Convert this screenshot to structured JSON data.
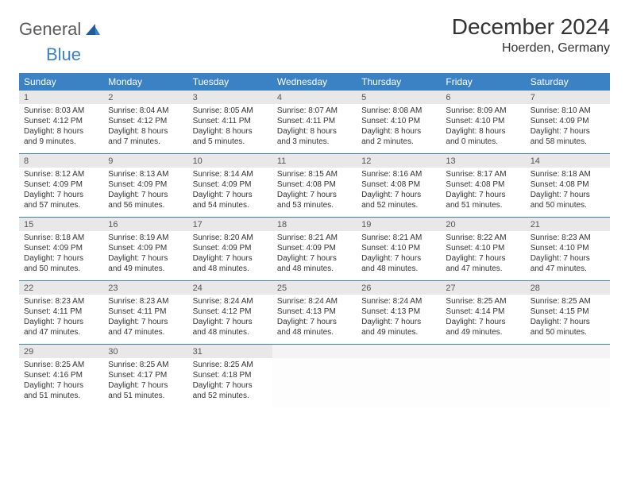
{
  "brand": {
    "part1": "General",
    "part2": "Blue"
  },
  "title": "December 2024",
  "location": "Hoerden, Germany",
  "colors": {
    "header_bg": "#3b82c4",
    "header_text": "#ffffff",
    "daynum_bg": "#e8e8e8",
    "empty_bg": "#f4f4f4",
    "rule": "#3b82c4",
    "body_text": "#333333"
  },
  "fonts": {
    "title_pt": 28,
    "location_pt": 16,
    "dayhead_pt": 12,
    "daynum_pt": 11,
    "detail_pt": 10
  },
  "day_headers": [
    "Sunday",
    "Monday",
    "Tuesday",
    "Wednesday",
    "Thursday",
    "Friday",
    "Saturday"
  ],
  "weeks": [
    [
      {
        "n": "1",
        "sr": "Sunrise: 8:03 AM",
        "ss": "Sunset: 4:12 PM",
        "d1": "Daylight: 8 hours",
        "d2": "and 9 minutes."
      },
      {
        "n": "2",
        "sr": "Sunrise: 8:04 AM",
        "ss": "Sunset: 4:12 PM",
        "d1": "Daylight: 8 hours",
        "d2": "and 7 minutes."
      },
      {
        "n": "3",
        "sr": "Sunrise: 8:05 AM",
        "ss": "Sunset: 4:11 PM",
        "d1": "Daylight: 8 hours",
        "d2": "and 5 minutes."
      },
      {
        "n": "4",
        "sr": "Sunrise: 8:07 AM",
        "ss": "Sunset: 4:11 PM",
        "d1": "Daylight: 8 hours",
        "d2": "and 3 minutes."
      },
      {
        "n": "5",
        "sr": "Sunrise: 8:08 AM",
        "ss": "Sunset: 4:10 PM",
        "d1": "Daylight: 8 hours",
        "d2": "and 2 minutes."
      },
      {
        "n": "6",
        "sr": "Sunrise: 8:09 AM",
        "ss": "Sunset: 4:10 PM",
        "d1": "Daylight: 8 hours",
        "d2": "and 0 minutes."
      },
      {
        "n": "7",
        "sr": "Sunrise: 8:10 AM",
        "ss": "Sunset: 4:09 PM",
        "d1": "Daylight: 7 hours",
        "d2": "and 58 minutes."
      }
    ],
    [
      {
        "n": "8",
        "sr": "Sunrise: 8:12 AM",
        "ss": "Sunset: 4:09 PM",
        "d1": "Daylight: 7 hours",
        "d2": "and 57 minutes."
      },
      {
        "n": "9",
        "sr": "Sunrise: 8:13 AM",
        "ss": "Sunset: 4:09 PM",
        "d1": "Daylight: 7 hours",
        "d2": "and 56 minutes."
      },
      {
        "n": "10",
        "sr": "Sunrise: 8:14 AM",
        "ss": "Sunset: 4:09 PM",
        "d1": "Daylight: 7 hours",
        "d2": "and 54 minutes."
      },
      {
        "n": "11",
        "sr": "Sunrise: 8:15 AM",
        "ss": "Sunset: 4:08 PM",
        "d1": "Daylight: 7 hours",
        "d2": "and 53 minutes."
      },
      {
        "n": "12",
        "sr": "Sunrise: 8:16 AM",
        "ss": "Sunset: 4:08 PM",
        "d1": "Daylight: 7 hours",
        "d2": "and 52 minutes."
      },
      {
        "n": "13",
        "sr": "Sunrise: 8:17 AM",
        "ss": "Sunset: 4:08 PM",
        "d1": "Daylight: 7 hours",
        "d2": "and 51 minutes."
      },
      {
        "n": "14",
        "sr": "Sunrise: 8:18 AM",
        "ss": "Sunset: 4:08 PM",
        "d1": "Daylight: 7 hours",
        "d2": "and 50 minutes."
      }
    ],
    [
      {
        "n": "15",
        "sr": "Sunrise: 8:18 AM",
        "ss": "Sunset: 4:09 PM",
        "d1": "Daylight: 7 hours",
        "d2": "and 50 minutes."
      },
      {
        "n": "16",
        "sr": "Sunrise: 8:19 AM",
        "ss": "Sunset: 4:09 PM",
        "d1": "Daylight: 7 hours",
        "d2": "and 49 minutes."
      },
      {
        "n": "17",
        "sr": "Sunrise: 8:20 AM",
        "ss": "Sunset: 4:09 PM",
        "d1": "Daylight: 7 hours",
        "d2": "and 48 minutes."
      },
      {
        "n": "18",
        "sr": "Sunrise: 8:21 AM",
        "ss": "Sunset: 4:09 PM",
        "d1": "Daylight: 7 hours",
        "d2": "and 48 minutes."
      },
      {
        "n": "19",
        "sr": "Sunrise: 8:21 AM",
        "ss": "Sunset: 4:10 PM",
        "d1": "Daylight: 7 hours",
        "d2": "and 48 minutes."
      },
      {
        "n": "20",
        "sr": "Sunrise: 8:22 AM",
        "ss": "Sunset: 4:10 PM",
        "d1": "Daylight: 7 hours",
        "d2": "and 47 minutes."
      },
      {
        "n": "21",
        "sr": "Sunrise: 8:23 AM",
        "ss": "Sunset: 4:10 PM",
        "d1": "Daylight: 7 hours",
        "d2": "and 47 minutes."
      }
    ],
    [
      {
        "n": "22",
        "sr": "Sunrise: 8:23 AM",
        "ss": "Sunset: 4:11 PM",
        "d1": "Daylight: 7 hours",
        "d2": "and 47 minutes."
      },
      {
        "n": "23",
        "sr": "Sunrise: 8:23 AM",
        "ss": "Sunset: 4:11 PM",
        "d1": "Daylight: 7 hours",
        "d2": "and 47 minutes."
      },
      {
        "n": "24",
        "sr": "Sunrise: 8:24 AM",
        "ss": "Sunset: 4:12 PM",
        "d1": "Daylight: 7 hours",
        "d2": "and 48 minutes."
      },
      {
        "n": "25",
        "sr": "Sunrise: 8:24 AM",
        "ss": "Sunset: 4:13 PM",
        "d1": "Daylight: 7 hours",
        "d2": "and 48 minutes."
      },
      {
        "n": "26",
        "sr": "Sunrise: 8:24 AM",
        "ss": "Sunset: 4:13 PM",
        "d1": "Daylight: 7 hours",
        "d2": "and 49 minutes."
      },
      {
        "n": "27",
        "sr": "Sunrise: 8:25 AM",
        "ss": "Sunset: 4:14 PM",
        "d1": "Daylight: 7 hours",
        "d2": "and 49 minutes."
      },
      {
        "n": "28",
        "sr": "Sunrise: 8:25 AM",
        "ss": "Sunset: 4:15 PM",
        "d1": "Daylight: 7 hours",
        "d2": "and 50 minutes."
      }
    ],
    [
      {
        "n": "29",
        "sr": "Sunrise: 8:25 AM",
        "ss": "Sunset: 4:16 PM",
        "d1": "Daylight: 7 hours",
        "d2": "and 51 minutes."
      },
      {
        "n": "30",
        "sr": "Sunrise: 8:25 AM",
        "ss": "Sunset: 4:17 PM",
        "d1": "Daylight: 7 hours",
        "d2": "and 51 minutes."
      },
      {
        "n": "31",
        "sr": "Sunrise: 8:25 AM",
        "ss": "Sunset: 4:18 PM",
        "d1": "Daylight: 7 hours",
        "d2": "and 52 minutes."
      },
      null,
      null,
      null,
      null
    ]
  ]
}
